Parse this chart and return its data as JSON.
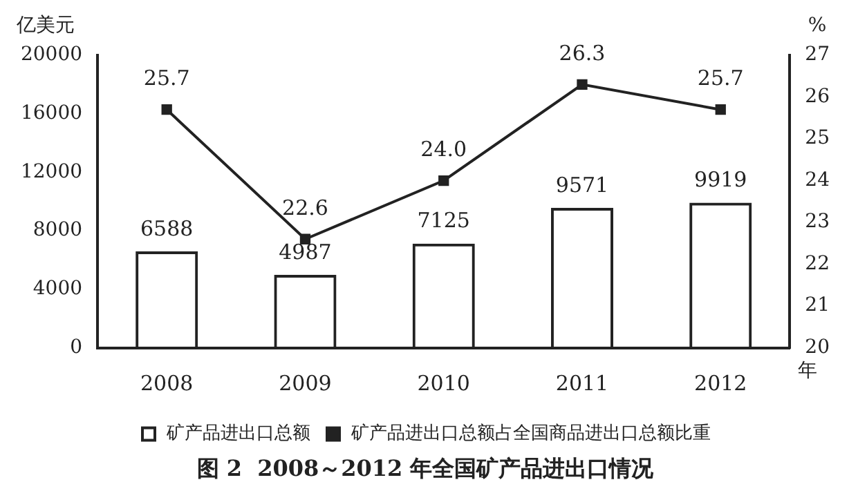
{
  "chart_data": {
    "type": "bar",
    "title": "图 2  2008～2012 年全国矿产品进出口情况",
    "xlabel": "年",
    "ylabel": "亿美元",
    "y2label": "%",
    "categories": [
      "2008",
      "2009",
      "2010",
      "2011",
      "2012"
    ],
    "series": [
      {
        "name": "矿产品进出口总额",
        "color": "#222222",
        "values": [
          6588,
          4987,
          7125,
          9571,
          9919
        ]
      },
      {
        "name": "矿产品进出口总额占全国商品进出口总额比重",
        "type": "line",
        "axis": "y2",
        "color": "#222222",
        "marker": "square",
        "values": [
          25.7,
          22.6,
          24.0,
          26.3,
          25.7
        ],
        "value_labels": [
          "25.7",
          "22.6",
          "24.0",
          "26.3",
          "25.7"
        ]
      }
    ],
    "ylim": [
      0,
      20000
    ],
    "yticks": [
      0,
      4000,
      8000,
      12000,
      16000,
      20000
    ],
    "y2lim": [
      20,
      27
    ],
    "y2ticks": [
      20,
      21,
      22,
      23,
      24,
      25,
      26,
      27
    ],
    "data_labels": true,
    "legend": "bottom",
    "grid": false
  }
}
